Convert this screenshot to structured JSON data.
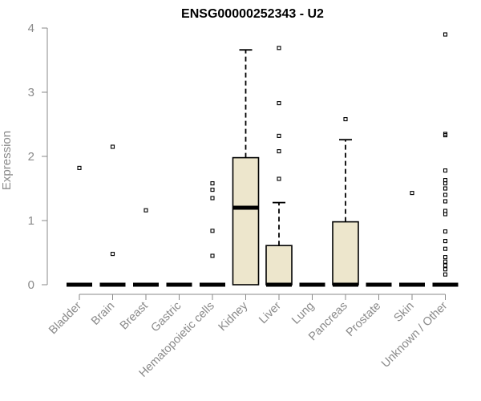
{
  "chart_data": {
    "type": "box",
    "title": "ENSG00000252343 - U2",
    "ylabel": "Expression",
    "ylim": [
      0,
      4
    ],
    "yticks": [
      "0",
      "1",
      "2",
      "3",
      "4"
    ],
    "grid": false,
    "box_fill": "#ede6cc",
    "categories": [
      {
        "name": "Bladder",
        "q1": 0,
        "median": 0,
        "q3": 0,
        "whisker_low": 0,
        "whisker_high": 0,
        "outliers": [
          1.82
        ]
      },
      {
        "name": "Brain",
        "q1": 0,
        "median": 0,
        "q3": 0,
        "whisker_low": 0,
        "whisker_high": 0,
        "outliers": [
          2.15,
          0.48
        ]
      },
      {
        "name": "Breast",
        "q1": 0,
        "median": 0,
        "q3": 0,
        "whisker_low": 0,
        "whisker_high": 0,
        "outliers": [
          1.16
        ]
      },
      {
        "name": "Gastric",
        "q1": 0,
        "median": 0,
        "q3": 0,
        "whisker_low": 0,
        "whisker_high": 0,
        "outliers": []
      },
      {
        "name": "Hematopoietic cells",
        "q1": 0,
        "median": 0,
        "q3": 0,
        "whisker_low": 0,
        "whisker_high": 0,
        "outliers": [
          1.58,
          1.48,
          1.35,
          0.84,
          0.45
        ]
      },
      {
        "name": "Kidney",
        "q1": 0,
        "median": 1.2,
        "q3": 1.98,
        "whisker_low": 0,
        "whisker_high": 3.66,
        "outliers": []
      },
      {
        "name": "Liver",
        "q1": 0,
        "median": 0,
        "q3": 0.61,
        "whisker_low": 0,
        "whisker_high": 1.28,
        "outliers": [
          3.69,
          2.83,
          2.32,
          2.08,
          1.65
        ]
      },
      {
        "name": "Lung",
        "q1": 0,
        "median": 0,
        "q3": 0,
        "whisker_low": 0,
        "whisker_high": 0,
        "outliers": []
      },
      {
        "name": "Pancreas",
        "q1": 0,
        "median": 0,
        "q3": 0.98,
        "whisker_low": 0,
        "whisker_high": 2.26,
        "outliers": [
          2.58
        ]
      },
      {
        "name": "Prostate",
        "q1": 0,
        "median": 0,
        "q3": 0,
        "whisker_low": 0,
        "whisker_high": 0,
        "outliers": []
      },
      {
        "name": "Skin",
        "q1": 0,
        "median": 0,
        "q3": 0,
        "whisker_low": 0,
        "whisker_high": 0,
        "outliers": [
          1.43
        ]
      },
      {
        "name": "Unknown / Other",
        "q1": 0,
        "median": 0,
        "q3": 0,
        "whisker_low": 0,
        "whisker_high": 0,
        "outliers": [
          3.9,
          2.35,
          2.33,
          1.78,
          1.63,
          1.58,
          1.5,
          1.4,
          1.3,
          1.15,
          1.1,
          0.83,
          0.68,
          0.56,
          0.43,
          0.36,
          0.3,
          0.24,
          0.16
        ]
      }
    ]
  }
}
